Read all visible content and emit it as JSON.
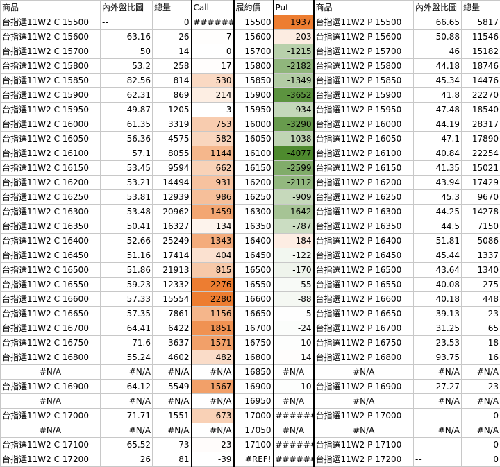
{
  "header": {
    "product": "商品",
    "ratio": "內外盤比圖",
    "volume": "總量",
    "call": "Call",
    "strike": "履約價",
    "put": "Put",
    "product2": "商品",
    "ratio2": "內外盤比圖",
    "volume2": "總量"
  },
  "colors": {
    "call_max": "#ed7d31",
    "put_pos": "#ed7d31",
    "put_neg": "#4e8a2e"
  },
  "rows": [
    {
      "c_name": "台指選11W2 C 15500",
      "c_ratio": "--",
      "c_vol": "0",
      "call": "######",
      "call_v": 0,
      "strike": "15500",
      "put": "1937",
      "put_v": 1937,
      "p_name": "台指選11W2 P 15500",
      "p_ratio": "66.65",
      "p_vol": "5817"
    },
    {
      "c_name": "台指選11W2 C 15600",
      "c_ratio": "63.16",
      "c_vol": "26",
      "call": "7",
      "call_v": 7,
      "strike": "15600",
      "put": "203",
      "put_v": 203,
      "p_name": "台指選11W2 P 15600",
      "p_ratio": "50.88",
      "p_vol": "11546"
    },
    {
      "c_name": "台指選11W2 C 15700",
      "c_ratio": "50",
      "c_vol": "14",
      "call": "0",
      "call_v": 0,
      "strike": "15700",
      "put": "-1215",
      "put_v": -1215,
      "p_name": "台指選11W2 P 15700",
      "p_ratio": "46",
      "p_vol": "15182"
    },
    {
      "c_name": "台指選11W2 C 15800",
      "c_ratio": "53.2",
      "c_vol": "258",
      "call": "17",
      "call_v": 17,
      "strike": "15800",
      "put": "-2182",
      "put_v": -2182,
      "p_name": "台指選11W2 P 15800",
      "p_ratio": "44.18",
      "p_vol": "18746"
    },
    {
      "c_name": "台指選11W2 C 15850",
      "c_ratio": "82.56",
      "c_vol": "814",
      "call": "530",
      "call_v": 530,
      "strike": "15850",
      "put": "-1349",
      "put_v": -1349,
      "p_name": "台指選11W2 P 15850",
      "p_ratio": "45.34",
      "p_vol": "14476"
    },
    {
      "c_name": "台指選11W2 C 15900",
      "c_ratio": "62.31",
      "c_vol": "869",
      "call": "214",
      "call_v": 214,
      "strike": "15900",
      "put": "-3652",
      "put_v": -3652,
      "p_name": "台指選11W2 P 15900",
      "p_ratio": "41.8",
      "p_vol": "22270"
    },
    {
      "c_name": "台指選11W2 C 15950",
      "c_ratio": "49.87",
      "c_vol": "1205",
      "call": "-3",
      "call_v": -3,
      "strike": "15950",
      "put": "-934",
      "put_v": -934,
      "p_name": "台指選11W2 P 15950",
      "p_ratio": "47.48",
      "p_vol": "18540"
    },
    {
      "c_name": "台指選11W2 C 16000",
      "c_ratio": "61.35",
      "c_vol": "3319",
      "call": "753",
      "call_v": 753,
      "strike": "16000",
      "put": "-3290",
      "put_v": -3290,
      "p_name": "台指選11W2 P 16000",
      "p_ratio": "44.19",
      "p_vol": "28317"
    },
    {
      "c_name": "台指選11W2 C 16050",
      "c_ratio": "56.36",
      "c_vol": "4575",
      "call": "582",
      "call_v": 582,
      "strike": "16050",
      "put": "-1038",
      "put_v": -1038,
      "p_name": "台指選11W2 P 16050",
      "p_ratio": "47.1",
      "p_vol": "17890"
    },
    {
      "c_name": "台指選11W2 C 16100",
      "c_ratio": "57.1",
      "c_vol": "8055",
      "call": "1144",
      "call_v": 1144,
      "strike": "16100",
      "put": "-4077",
      "put_v": -4077,
      "p_name": "台指選11W2 P 16100",
      "p_ratio": "40.84",
      "p_vol": "22254"
    },
    {
      "c_name": "台指選11W2 C 16150",
      "c_ratio": "53.45",
      "c_vol": "9594",
      "call": "662",
      "call_v": 662,
      "strike": "16150",
      "put": "-2599",
      "put_v": -2599,
      "p_name": "台指選11W2 P 16150",
      "p_ratio": "41.35",
      "p_vol": "15021"
    },
    {
      "c_name": "台指選11W2 C 16200",
      "c_ratio": "53.21",
      "c_vol": "14494",
      "call": "931",
      "call_v": 931,
      "strike": "16200",
      "put": "-2112",
      "put_v": -2112,
      "p_name": "台指選11W2 P 16200",
      "p_ratio": "43.94",
      "p_vol": "17429"
    },
    {
      "c_name": "台指選11W2 C 16250",
      "c_ratio": "53.81",
      "c_vol": "12939",
      "call": "986",
      "call_v": 986,
      "strike": "16250",
      "put": "-909",
      "put_v": -909,
      "p_name": "台指選11W2 P 16250",
      "p_ratio": "45.3",
      "p_vol": "9670"
    },
    {
      "c_name": "台指選11W2 C 16300",
      "c_ratio": "53.48",
      "c_vol": "20962",
      "call": "1459",
      "call_v": 1459,
      "strike": "16300",
      "put": "-1642",
      "put_v": -1642,
      "p_name": "台指選11W2 P 16300",
      "p_ratio": "44.25",
      "p_vol": "14278"
    },
    {
      "c_name": "台指選11W2 C 16350",
      "c_ratio": "50.41",
      "c_vol": "16327",
      "call": "134",
      "call_v": 134,
      "strike": "16350",
      "put": "-787",
      "put_v": -787,
      "p_name": "台指選11W2 P 16350",
      "p_ratio": "44.5",
      "p_vol": "7150"
    },
    {
      "c_name": "台指選11W2 C 16400",
      "c_ratio": "52.66",
      "c_vol": "25249",
      "call": "1343",
      "call_v": 1343,
      "strike": "16400",
      "put": "184",
      "put_v": 184,
      "p_name": "台指選11W2 P 16400",
      "p_ratio": "51.81",
      "p_vol": "5086"
    },
    {
      "c_name": "台指選11W2 C 16450",
      "c_ratio": "51.16",
      "c_vol": "17414",
      "call": "404",
      "call_v": 404,
      "strike": "16450",
      "put": "-122",
      "put_v": -122,
      "p_name": "台指選11W2 P 16450",
      "p_ratio": "45.44",
      "p_vol": "1337"
    },
    {
      "c_name": "台指選11W2 C 16500",
      "c_ratio": "51.86",
      "c_vol": "21913",
      "call": "815",
      "call_v": 815,
      "strike": "16500",
      "put": "-170",
      "put_v": -170,
      "p_name": "台指選11W2 P 16500",
      "p_ratio": "43.64",
      "p_vol": "1340"
    },
    {
      "c_name": "台指選11W2 C 16550",
      "c_ratio": "59.23",
      "c_vol": "12332",
      "call": "2276",
      "call_v": 2276,
      "strike": "16550",
      "put": "-55",
      "put_v": -55,
      "p_name": "台指選11W2 P 16550",
      "p_ratio": "40.08",
      "p_vol": "275"
    },
    {
      "c_name": "台指選11W2 C 16600",
      "c_ratio": "57.33",
      "c_vol": "15554",
      "call": "2280",
      "call_v": 2280,
      "strike": "16600",
      "put": "-88",
      "put_v": -88,
      "p_name": "台指選11W2 P 16600",
      "p_ratio": "40.18",
      "p_vol": "448"
    },
    {
      "c_name": "台指選11W2 C 16650",
      "c_ratio": "57.35",
      "c_vol": "7861",
      "call": "1156",
      "call_v": 1156,
      "strike": "16650",
      "put": "-5",
      "put_v": -5,
      "p_name": "台指選11W2 P 16650",
      "p_ratio": "39.13",
      "p_vol": "23"
    },
    {
      "c_name": "台指選11W2 C 16700",
      "c_ratio": "64.41",
      "c_vol": "6422",
      "call": "1851",
      "call_v": 1851,
      "strike": "16700",
      "put": "-24",
      "put_v": -24,
      "p_name": "台指選11W2 P 16700",
      "p_ratio": "31.25",
      "p_vol": "65"
    },
    {
      "c_name": "台指選11W2 C 16750",
      "c_ratio": "71.6",
      "c_vol": "3637",
      "call": "1571",
      "call_v": 1571,
      "strike": "16750",
      "put": "-10",
      "put_v": -10,
      "p_name": "台指選11W2 P 16750",
      "p_ratio": "23.53",
      "p_vol": "18"
    },
    {
      "c_name": "台指選11W2 C 16800",
      "c_ratio": "55.24",
      "c_vol": "4602",
      "call": "482",
      "call_v": 482,
      "strike": "16800",
      "put": "14",
      "put_v": 14,
      "p_name": "台指選11W2 P 16800",
      "p_ratio": "93.75",
      "p_vol": "16"
    },
    {
      "na": true,
      "c_name": "#N/A",
      "c_ratio": "#N/A",
      "c_vol": "#N/A",
      "call": "#N/A",
      "call_v": 0,
      "strike": "16850",
      "put": "#N/A",
      "put_v": 0,
      "p_name": "#N/A",
      "p_ratio": "#N/A",
      "p_vol": "#N/A"
    },
    {
      "c_name": "台指選11W2 C 16900",
      "c_ratio": "64.12",
      "c_vol": "5549",
      "call": "1567",
      "call_v": 1567,
      "strike": "16900",
      "put": "-10",
      "put_v": -10,
      "p_name": "台指選11W2 P 16900",
      "p_ratio": "27.27",
      "p_vol": "23"
    },
    {
      "na": true,
      "c_name": "#N/A",
      "c_ratio": "#N/A",
      "c_vol": "#N/A",
      "call": "#N/A",
      "call_v": 0,
      "strike": "16950",
      "put": "#N/A",
      "put_v": 0,
      "p_name": "#N/A",
      "p_ratio": "#N/A",
      "p_vol": "#N/A"
    },
    {
      "c_name": "台指選11W2 C 17000",
      "c_ratio": "71.71",
      "c_vol": "1551",
      "call": "673",
      "call_v": 673,
      "strike": "17000",
      "put": "######",
      "put_v": 0,
      "p_name": "台指選11W2 P 17000",
      "p_ratio": "--",
      "p_vol": "0"
    },
    {
      "na": true,
      "c_name": "#N/A",
      "c_ratio": "#N/A",
      "c_vol": "#N/A",
      "call": "#N/A",
      "call_v": 0,
      "strike": "17050",
      "put": "#N/A",
      "put_v": 0,
      "p_name": "#N/A",
      "p_ratio": "#N/A",
      "p_vol": "#N/A"
    },
    {
      "c_name": "台指選11W2 C 17100",
      "c_ratio": "65.52",
      "c_vol": "73",
      "call": "23",
      "call_v": 23,
      "strike": "17100",
      "put": "######",
      "put_v": 0,
      "p_name": "台指選11W2 P 17100",
      "p_ratio": "--",
      "p_vol": "0"
    },
    {
      "c_name": "台指選11W2 C 17200",
      "c_ratio": "26",
      "c_vol": "81",
      "call": "-39",
      "call_v": -39,
      "strike": "#REF!",
      "put": "######",
      "put_v": 0,
      "p_name": "台指選11W2 P 17200",
      "p_ratio": "--",
      "p_vol": "0"
    }
  ]
}
